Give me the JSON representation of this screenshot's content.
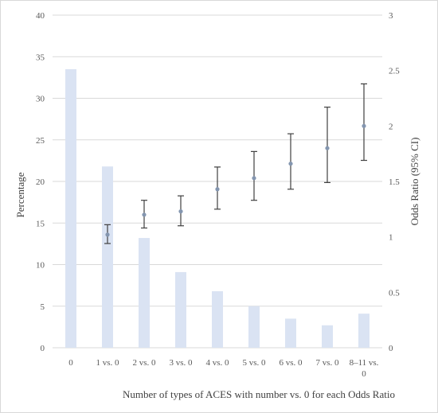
{
  "chart_data": {
    "type": "bar",
    "categories": [
      "0",
      "1 vs. 0",
      "2 vs. 0",
      "3 vs. 0",
      "4 vs. 0",
      "5 vs. 0",
      "6 vs. 0",
      "7 vs. 0",
      "8–11 vs. 0"
    ],
    "category_lines": [
      [
        "0"
      ],
      [
        "1 vs. 0"
      ],
      [
        "2 vs. 0"
      ],
      [
        "3 vs. 0"
      ],
      [
        "4 vs. 0"
      ],
      [
        "5 vs. 0"
      ],
      [
        "6 vs. 0"
      ],
      [
        "7 vs. 0"
      ],
      [
        "8–11 vs.",
        "0"
      ]
    ],
    "series": [
      {
        "type": "bar",
        "axis": "left",
        "values": [
          33.5,
          21.8,
          13.2,
          9.1,
          6.8,
          5.0,
          3.5,
          2.7,
          4.1
        ]
      },
      {
        "type": "point-errorbar",
        "axis": "right",
        "values": [
          null,
          1.02,
          1.2,
          1.23,
          1.43,
          1.53,
          1.66,
          1.8,
          2.0
        ],
        "ci_low": [
          null,
          0.94,
          1.08,
          1.1,
          1.25,
          1.33,
          1.43,
          1.49,
          1.69
        ],
        "ci_high": [
          null,
          1.11,
          1.33,
          1.37,
          1.63,
          1.77,
          1.93,
          2.17,
          2.38
        ]
      }
    ],
    "xlabel": "Number of types of ACES with number vs. 0 for each Odds Ratio",
    "ylabel": "Percentage",
    "y2label": "Odds Ratio (95% CI)",
    "ylim": [
      0,
      40
    ],
    "y2lim": [
      0,
      3
    ],
    "yticks": [
      "0",
      "5",
      "10",
      "15",
      "20",
      "25",
      "30",
      "35",
      "40"
    ],
    "y2ticks": [
      "0",
      "0.5",
      "1",
      "1.5",
      "2",
      "2.5",
      "3"
    ],
    "grid": true,
    "colors": {
      "bar": "#dae3f3",
      "point": "#8496b0",
      "errorbar": "#404040",
      "grid": "#d9d9d9"
    }
  }
}
